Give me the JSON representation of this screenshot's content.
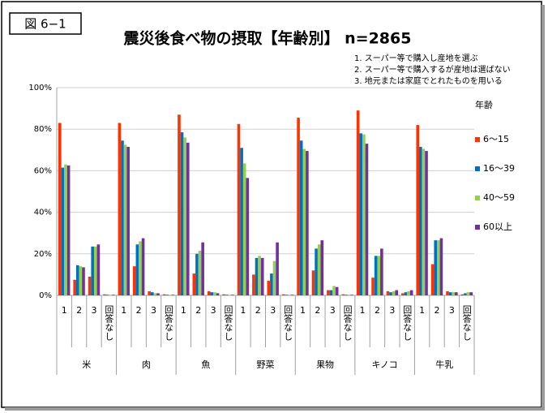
{
  "chart_data": {
    "type": "bar",
    "figure_label": "図 6−1",
    "title": "震災後食べ物の摂取【年齢別】 n=2865",
    "notes": [
      "1. スーパー等で購入し産地を選ぶ",
      "2. スーパー等で購入するが産地は選ばない",
      "3. 地元または家庭でとれたものを用いる"
    ],
    "legend_title": "年齢",
    "groups": [
      "米",
      "肉",
      "魚",
      "野菜",
      "果物",
      "キノコ",
      "牛乳"
    ],
    "categories": [
      "1",
      "2",
      "3",
      "回答なし",
      "1",
      "2",
      "3",
      "回答なし",
      "1",
      "2",
      "3",
      "回答なし",
      "1",
      "2",
      "3",
      "回答なし",
      "1",
      "2",
      "3",
      "回答なし",
      "1",
      "2",
      "3",
      "回答なし",
      "1",
      "2",
      "3",
      "回答なし"
    ],
    "series": [
      {
        "name": "6～15",
        "color": "#ff3300",
        "values": [
          83,
          7.5,
          9,
          0.5,
          83,
          14,
          2,
          0.5,
          87,
          10.5,
          2,
          0.5,
          82.5,
          10,
          7,
          0.5,
          85.5,
          12,
          2.5,
          0.5,
          89,
          8.5,
          2,
          1,
          82,
          15,
          2,
          0.5
        ]
      },
      {
        "name": "16～39",
        "color": "#0070c0",
        "values": [
          61.5,
          14.5,
          23.5,
          0.3,
          74.5,
          24.5,
          1.5,
          0.3,
          78.5,
          20,
          1.5,
          0.3,
          71,
          18,
          10.5,
          0.3,
          74.5,
          22.5,
          2.5,
          0.3,
          78,
          19,
          1.5,
          1.5,
          71.5,
          26.5,
          1.5,
          1
        ]
      },
      {
        "name": "40～59",
        "color": "#92d050",
        "values": [
          63,
          14,
          23.5,
          0.3,
          72.5,
          26,
          1,
          0.3,
          76,
          21.5,
          1.5,
          0.3,
          63.5,
          19,
          16.5,
          0.3,
          70.5,
          24.5,
          4.5,
          0.3,
          77.5,
          19,
          2,
          2,
          70.5,
          26.5,
          1.5,
          1.5
        ]
      },
      {
        "name": "60以上",
        "color": "#7030a0",
        "values": [
          62.5,
          13.5,
          24.5,
          0.3,
          71.5,
          27.5,
          1,
          0.3,
          73.5,
          25.5,
          1,
          0.3,
          56.5,
          18,
          25.5,
          0.3,
          69.5,
          26.5,
          4,
          0.3,
          73,
          22.5,
          2.5,
          2.5,
          69.5,
          27.5,
          1.5,
          1.5
        ]
      }
    ],
    "ylim": [
      0,
      100
    ],
    "yticks": [
      {
        "value": 0,
        "label": "0%"
      },
      {
        "value": 20,
        "label": "20%"
      },
      {
        "value": 40,
        "label": "40%"
      },
      {
        "value": 60,
        "label": "60%"
      },
      {
        "value": 80,
        "label": "80%"
      },
      {
        "value": 100,
        "label": "100%"
      }
    ],
    "grid": true
  }
}
